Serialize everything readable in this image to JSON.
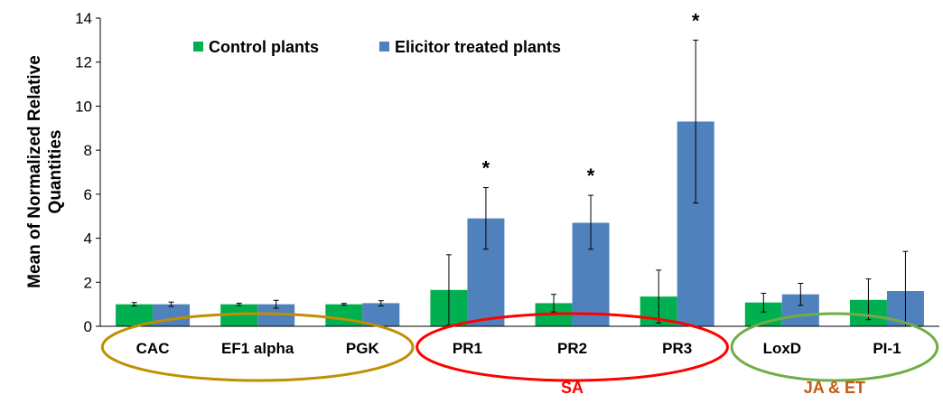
{
  "chart_data": {
    "type": "bar",
    "title": "",
    "xlabel": "",
    "ylabel": "Mean of Normalized Relative Quantities",
    "ylabel_lines": [
      "Mean of Normalized Relative",
      "Quantities"
    ],
    "ylim": [
      0,
      14
    ],
    "yticks": [
      "0",
      "2",
      "4",
      "6",
      "8",
      "10",
      "12",
      "14"
    ],
    "categories": [
      "CAC",
      "EF1 alpha",
      "PGK",
      "PR1",
      "PR2",
      "PR3",
      "LoxD",
      "PI-1"
    ],
    "series": [
      {
        "name": "Control plants",
        "color": "#00b050",
        "values": [
          1.0,
          1.0,
          1.0,
          1.65,
          1.05,
          1.35,
          1.08,
          1.2
        ],
        "err_low": [
          0.92,
          0.95,
          0.96,
          0.05,
          0.65,
          0.15,
          0.65,
          0.3
        ],
        "err_high": [
          1.08,
          1.05,
          1.04,
          3.25,
          1.45,
          2.55,
          1.5,
          2.15
        ]
      },
      {
        "name": "Elicitor treated plants",
        "color": "#4f81bd",
        "values": [
          1.0,
          1.0,
          1.05,
          4.9,
          4.7,
          9.3,
          1.45,
          1.6
        ],
        "err_low": [
          0.9,
          0.82,
          0.92,
          3.5,
          3.5,
          5.6,
          0.95,
          0.0
        ],
        "err_high": [
          1.1,
          1.18,
          1.16,
          6.3,
          5.95,
          13.0,
          1.95,
          3.4
        ]
      }
    ],
    "significance_markers": [
      {
        "category": "PR1",
        "label": "*"
      },
      {
        "category": "PR2",
        "label": "*"
      },
      {
        "category": "PR3",
        "label": "*"
      }
    ],
    "groups": [
      {
        "name": "",
        "categories": [
          "CAC",
          "EF1 alpha",
          "PGK"
        ],
        "color": "#bf9000"
      },
      {
        "name": "SA",
        "categories": [
          "PR1",
          "PR2",
          "PR3"
        ],
        "color": "#ff0000"
      },
      {
        "name": "JA & ET",
        "categories": [
          "LoxD",
          "PI-1"
        ],
        "color": "#70ad47",
        "label_color": "#c55a11"
      }
    ],
    "legend": {
      "position": "top-left"
    }
  }
}
